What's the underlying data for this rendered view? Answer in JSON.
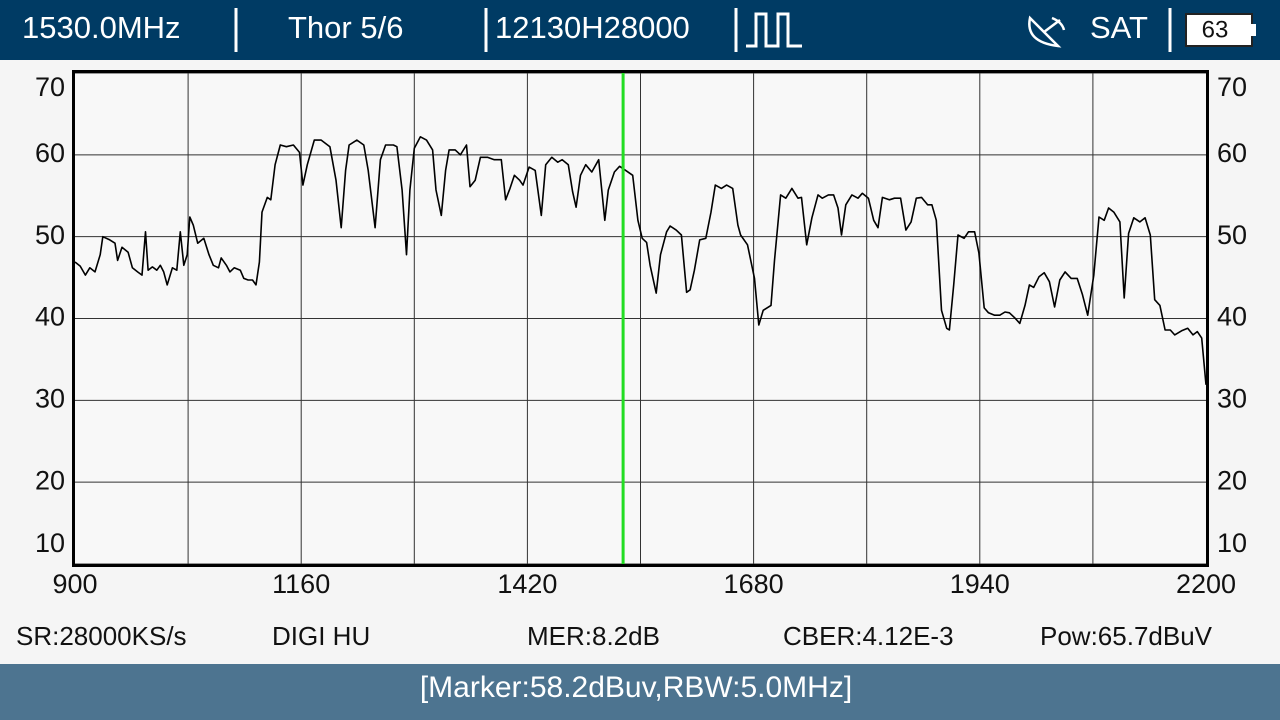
{
  "header": {
    "frequency": "1530.0MHz",
    "satellite": "Thor 5/6",
    "transponder": "12130H28000",
    "mode": "SAT",
    "battery": "63"
  },
  "chart_data": {
    "type": "line",
    "x": [
      900,
      906,
      912,
      917,
      923,
      929,
      932,
      940,
      946,
      949,
      954,
      961,
      966,
      972,
      977,
      981,
      984,
      989,
      994,
      998,
      1002,
      1006,
      1012,
      1017,
      1021,
      1025,
      1029,
      1032,
      1036,
      1041,
      1048,
      1054,
      1059,
      1065,
      1068,
      1074,
      1078,
      1083,
      1090,
      1094,
      1099,
      1104,
      1108,
      1112,
      1115,
      1121,
      1125,
      1130,
      1136,
      1143,
      1151,
      1158,
      1162,
      1167,
      1175,
      1183,
      1193,
      1200,
      1206,
      1211,
      1215,
      1224,
      1232,
      1237,
      1245,
      1251,
      1257,
      1266,
      1270,
      1276,
      1281,
      1285,
      1290,
      1297,
      1304,
      1311,
      1315,
      1321,
      1326,
      1330,
      1337,
      1343,
      1350,
      1354,
      1360,
      1366,
      1374,
      1382,
      1390,
      1395,
      1400,
      1405,
      1411,
      1415,
      1422,
      1429,
      1436,
      1441,
      1448,
      1455,
      1460,
      1467,
      1472,
      1476,
      1481,
      1487,
      1494,
      1502,
      1509,
      1513,
      1520,
      1526,
      1533,
      1541,
      1547,
      1552,
      1557,
      1561,
      1568,
      1573,
      1580,
      1584,
      1591,
      1597,
      1603,
      1607,
      1612,
      1618,
      1625,
      1631,
      1636,
      1643,
      1649,
      1656,
      1662,
      1665,
      1673,
      1681,
      1686,
      1691,
      1700,
      1704,
      1711,
      1717,
      1724,
      1731,
      1735,
      1741,
      1747,
      1754,
      1759,
      1766,
      1772,
      1777,
      1781,
      1786,
      1793,
      1800,
      1805,
      1812,
      1818,
      1823,
      1828,
      1836,
      1842,
      1849,
      1855,
      1861,
      1867,
      1873,
      1880,
      1885,
      1890,
      1896,
      1902,
      1905,
      1910,
      1915,
      1922,
      1927,
      1934,
      1939,
      1945,
      1950,
      1957,
      1963,
      1969,
      1974,
      1980,
      1986,
      1992,
      1997,
      2002,
      2008,
      2014,
      2020,
      2026,
      2032,
      2038,
      2045,
      2052,
      2058,
      2064,
      2071,
      2077,
      2083,
      2088,
      2094,
      2101,
      2106,
      2111,
      2117,
      2124,
      2130,
      2136,
      2141,
      2147,
      2153,
      2159,
      2164,
      2172,
      2179,
      2185,
      2190,
      2195,
      2200
    ],
    "series": [
      {
        "color": "#000000",
        "values": [
          46.9,
          46.4,
          45.3,
          46.2,
          45.7,
          47.8,
          50.0,
          49.6,
          49.2,
          47.1,
          48.7,
          48.1,
          46.2,
          45.7,
          45.3,
          50.6,
          45.9,
          46.3,
          45.9,
          46.5,
          45.7,
          44.1,
          46.2,
          45.9,
          50.6,
          46.5,
          47.8,
          52.4,
          51.4,
          49.2,
          49.8,
          47.8,
          46.5,
          46.2,
          47.4,
          46.5,
          45.7,
          46.2,
          45.9,
          44.9,
          44.7,
          44.7,
          44.1,
          46.9,
          53.0,
          54.8,
          54.5,
          58.8,
          61.2,
          61.0,
          61.2,
          60.3,
          56.3,
          58.8,
          61.8,
          61.8,
          61.0,
          56.9,
          51.1,
          58.1,
          61.2,
          61.8,
          61.2,
          58.1,
          51.1,
          59.4,
          61.2,
          61.2,
          61.0,
          55.7,
          47.8,
          55.7,
          60.8,
          62.2,
          61.8,
          60.6,
          55.7,
          52.6,
          58.1,
          60.6,
          60.6,
          60.0,
          61.2,
          56.1,
          56.9,
          59.7,
          59.7,
          59.4,
          59.4,
          54.5,
          55.9,
          57.5,
          56.9,
          56.3,
          58.5,
          58.1,
          52.6,
          58.8,
          59.7,
          59.1,
          59.4,
          58.8,
          55.5,
          53.6,
          57.5,
          58.8,
          57.9,
          59.4,
          52.0,
          55.7,
          57.9,
          58.6,
          58.1,
          57.5,
          52.0,
          49.8,
          49.3,
          46.5,
          43.1,
          47.8,
          50.6,
          51.3,
          50.8,
          50.2,
          43.2,
          43.5,
          45.9,
          49.6,
          49.8,
          53.0,
          56.3,
          55.9,
          56.3,
          55.9,
          51.4,
          50.2,
          49.0,
          44.9,
          39.2,
          41.0,
          41.6,
          47.1,
          55.1,
          54.7,
          55.9,
          54.7,
          54.8,
          49.0,
          52.3,
          55.1,
          54.7,
          55.1,
          55.1,
          53.5,
          50.2,
          53.9,
          55.1,
          54.7,
          55.3,
          54.7,
          52.0,
          51.1,
          54.8,
          54.5,
          54.7,
          54.7,
          50.8,
          51.8,
          54.7,
          54.8,
          53.9,
          53.9,
          52.0,
          41.0,
          38.8,
          38.6,
          44.1,
          50.2,
          49.8,
          50.6,
          50.6,
          48.0,
          41.3,
          40.7,
          40.4,
          40.4,
          40.8,
          40.7,
          40.1,
          39.4,
          41.6,
          44.1,
          43.8,
          45.1,
          45.6,
          44.5,
          41.4,
          44.7,
          45.7,
          44.9,
          44.9,
          42.9,
          40.4,
          45.3,
          52.4,
          52.0,
          53.5,
          53.0,
          51.8,
          42.5,
          50.4,
          52.3,
          51.8,
          52.3,
          50.2,
          42.3,
          41.6,
          38.6,
          38.6,
          38.0,
          38.5,
          38.8,
          38.0,
          38.4,
          37.6,
          31.9
        ]
      }
    ],
    "xlim": [
      900,
      2200
    ],
    "ylim": [
      10,
      70
    ],
    "xticks": [
      900,
      1160,
      1420,
      1680,
      1940,
      2200
    ],
    "xgrid": [
      1030,
      1160,
      1290,
      1420,
      1550,
      1680,
      1810,
      1940,
      2070
    ],
    "yticks": [
      70,
      60,
      50,
      40,
      30,
      20,
      10
    ],
    "grid": true,
    "marker_x": 1530,
    "marker_color": "#22dd22"
  },
  "status": {
    "symbol_rate": "SR:28000KS/s",
    "provider": "DIGI HU",
    "mer": "MER:8.2dB",
    "cber": "CBER:4.12E-3",
    "power": "Pow:65.7dBuV"
  },
  "footer": {
    "marker": "[Marker:58.2dBuv,RBW:5.0MHz]"
  }
}
